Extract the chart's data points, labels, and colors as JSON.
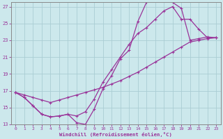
{
  "xlabel": "Windchill (Refroidissement éolien,°C)",
  "bg_color": "#cce8ec",
  "grid_color": "#aacdd4",
  "line_color": "#993399",
  "xlim": [
    -0.5,
    23.5
  ],
  "ylim": [
    13,
    27.5
  ],
  "xticks": [
    0,
    1,
    2,
    3,
    4,
    5,
    6,
    7,
    8,
    9,
    10,
    11,
    12,
    13,
    14,
    15,
    16,
    17,
    18,
    19,
    20,
    21,
    22,
    23
  ],
  "yticks": [
    13,
    15,
    17,
    19,
    21,
    23,
    25,
    27
  ],
  "lines": [
    {
      "x": [
        0,
        1,
        2,
        3,
        4,
        5,
        6,
        7,
        8,
        9,
        10,
        11,
        12,
        13,
        14,
        15,
        16,
        17,
        18,
        19,
        20,
        21,
        22,
        23
      ],
      "y": [
        16.8,
        16.5,
        16.2,
        15.9,
        15.6,
        15.9,
        16.2,
        16.5,
        16.8,
        17.1,
        17.4,
        17.8,
        18.2,
        18.7,
        19.2,
        19.8,
        20.4,
        21.0,
        21.6,
        22.2,
        22.8,
        23.0,
        23.2,
        23.3
      ]
    },
    {
      "x": [
        0,
        1,
        2,
        3,
        4,
        5,
        6,
        7,
        8,
        9,
        10,
        11,
        12,
        13,
        14,
        15,
        16,
        17,
        18,
        19,
        20,
        21,
        22,
        23
      ],
      "y": [
        16.8,
        16.2,
        15.2,
        14.2,
        13.9,
        14.0,
        14.2,
        13.2,
        13.0,
        14.8,
        17.2,
        18.8,
        20.8,
        21.8,
        25.2,
        27.5,
        27.8,
        27.8,
        27.5,
        26.8,
        23.0,
        23.2,
        23.4,
        23.3
      ]
    },
    {
      "x": [
        0,
        1,
        2,
        3,
        4,
        5,
        6,
        7,
        8,
        9,
        10,
        11,
        12,
        13,
        14,
        15,
        16,
        17,
        18,
        19,
        20,
        21,
        22,
        23
      ],
      "y": [
        16.8,
        16.2,
        15.2,
        14.2,
        13.9,
        14.0,
        14.2,
        14.0,
        14.5,
        16.0,
        18.0,
        19.5,
        21.0,
        22.5,
        23.8,
        24.5,
        25.5,
        26.5,
        27.0,
        25.5,
        25.5,
        24.3,
        23.3,
        23.3
      ]
    }
  ]
}
